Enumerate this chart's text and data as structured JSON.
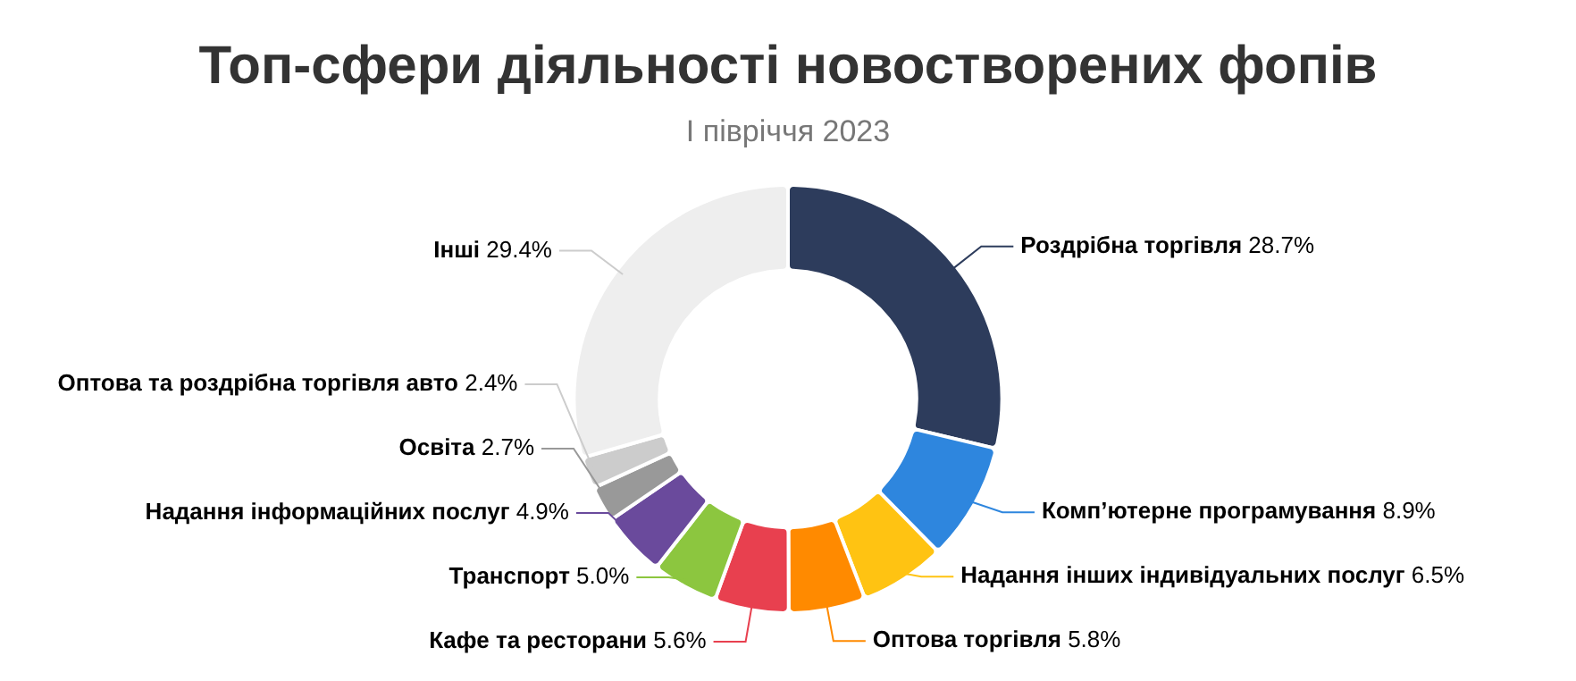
{
  "chart_data": {
    "type": "donut",
    "title": "Топ-сфери діяльності новостворених фопів",
    "subtitle": "І півріччя 2023",
    "categories": [
      "Роздрібна торгівля",
      "Комп’ютерне програмування",
      "Надання інших індивідуальних послуг",
      "Оптова торгівля",
      "Кафе та ресторани",
      "Транспорт",
      "Надання інформаційних послуг",
      "Освіта",
      "Оптова та роздрібна торгівля авто",
      "Інші"
    ],
    "values": [
      28.7,
      8.9,
      6.5,
      5.8,
      5.6,
      5.0,
      4.9,
      2.7,
      2.4,
      29.4
    ],
    "value_labels": [
      "28.7%",
      "8.9%",
      "6.5%",
      "5.8%",
      "5.6%",
      "5.0%",
      "4.9%",
      "2.7%",
      "2.4%",
      "29.4%"
    ],
    "colors": [
      "#2d3c5c",
      "#2e86de",
      "#ffc312",
      "#ff8a00",
      "#e8404f",
      "#8cc63f",
      "#6a4a9c",
      "#999999",
      "#cccccc",
      "#eeeeee"
    ],
    "legend": false
  }
}
